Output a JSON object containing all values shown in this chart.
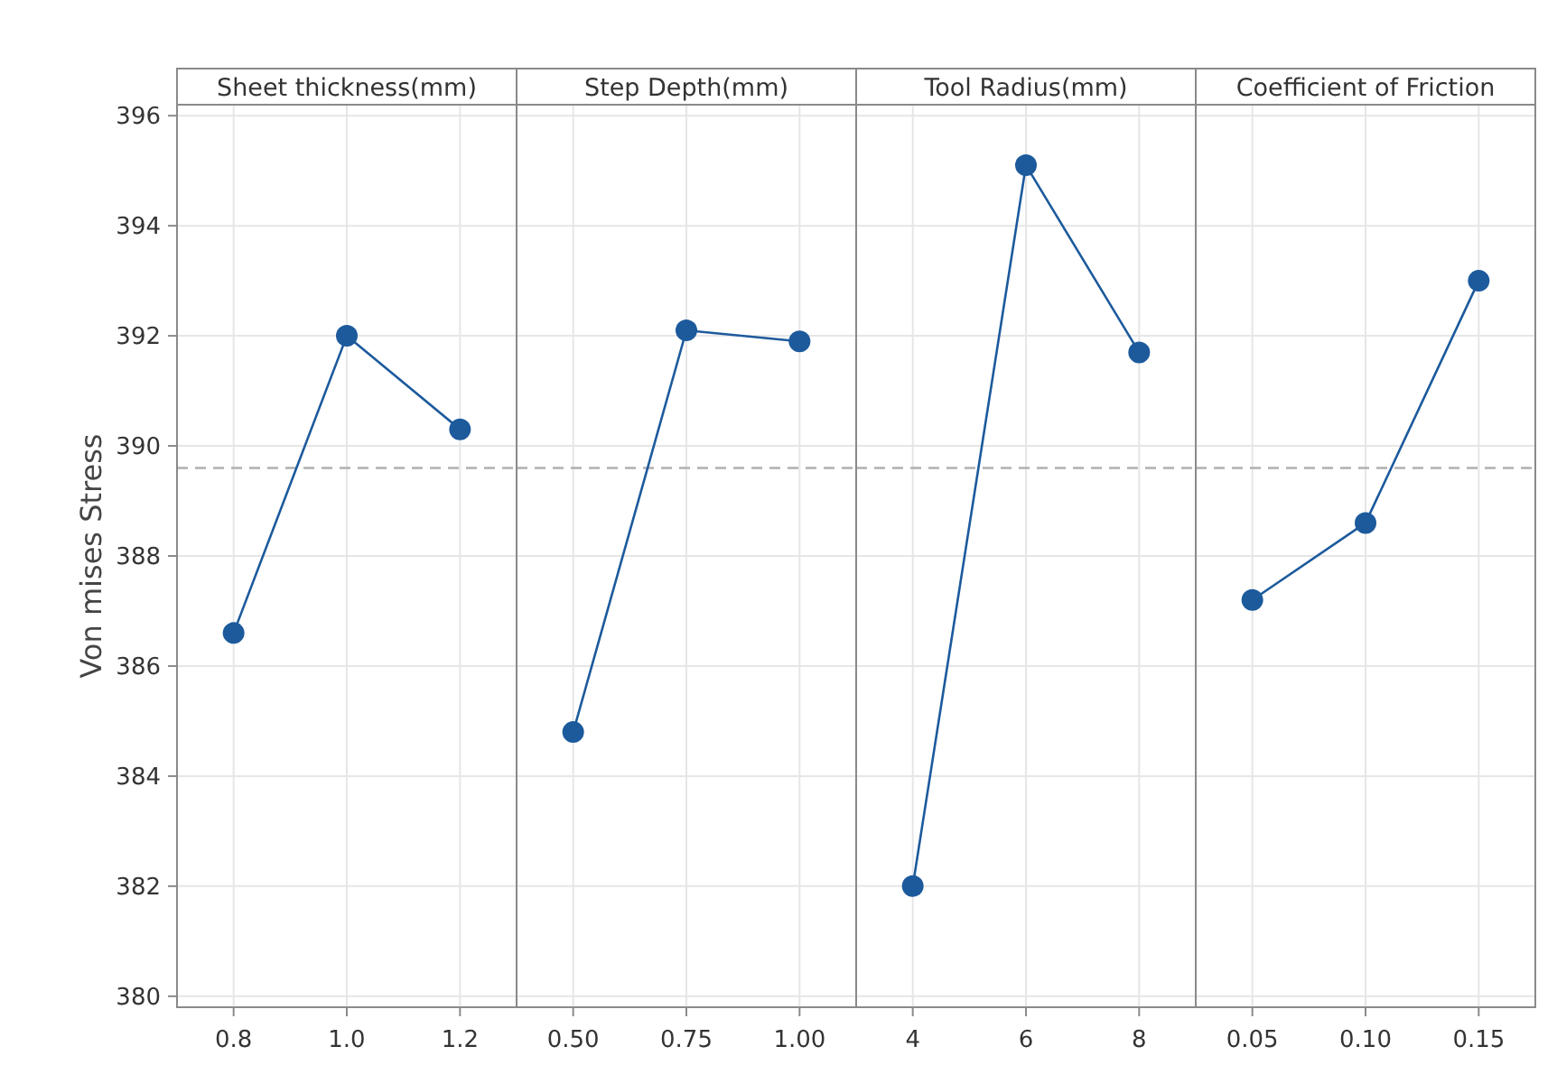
{
  "chart_data": [
    {
      "type": "line",
      "title": "Sheet thickness(mm)",
      "ylabel": "Von mises Stress",
      "categories": [
        "0.8",
        "1.0",
        "1.2"
      ],
      "series": [
        {
          "color": "#1c5a9c",
          "values": [
            386.6,
            392.0,
            390.3
          ]
        }
      ],
      "ylim": [
        379.8,
        396.2
      ],
      "yticks": [
        380,
        382,
        384,
        386,
        388,
        390,
        392,
        394,
        396
      ],
      "grid": true,
      "marker": "circle",
      "ref_lines": [
        {
          "axis": "y",
          "value": 389.6,
          "color": "#b0b0b0",
          "line_style": "dashed"
        }
      ]
    },
    {
      "type": "line",
      "title": "Step Depth(mm)",
      "categories": [
        "0.50",
        "0.75",
        "1.00"
      ],
      "series": [
        {
          "color": "#1c5a9c",
          "values": [
            384.8,
            392.1,
            391.9
          ]
        }
      ],
      "ylim": [
        379.8,
        396.2
      ],
      "yticks": [
        380,
        382,
        384,
        386,
        388,
        390,
        392,
        394,
        396
      ],
      "tick_labels": "x",
      "grid": true,
      "marker": "circle",
      "ref_lines": [
        {
          "axis": "y",
          "value": 389.6,
          "color": "#b0b0b0",
          "line_style": "dashed"
        }
      ]
    },
    {
      "type": "line",
      "title": "Tool Radius(mm)",
      "categories": [
        "4",
        "6",
        "8"
      ],
      "series": [
        {
          "color": "#1c5a9c",
          "values": [
            382.0,
            395.1,
            391.7
          ]
        }
      ],
      "ylim": [
        379.8,
        396.2
      ],
      "yticks": [
        380,
        382,
        384,
        386,
        388,
        390,
        392,
        394,
        396
      ],
      "tick_labels": "x",
      "grid": true,
      "marker": "circle",
      "ref_lines": [
        {
          "axis": "y",
          "value": 389.6,
          "color": "#b0b0b0",
          "line_style": "dashed"
        }
      ]
    },
    {
      "type": "line",
      "title": "Coefficient of Friction",
      "categories": [
        "0.05",
        "0.10",
        "0.15"
      ],
      "series": [
        {
          "color": "#1c5a9c",
          "values": [
            387.2,
            388.6,
            393.0
          ]
        }
      ],
      "ylim": [
        379.8,
        396.2
      ],
      "yticks": [
        380,
        382,
        384,
        386,
        388,
        390,
        392,
        394,
        396
      ],
      "tick_labels": "x",
      "grid": true,
      "marker": "circle",
      "ref_lines": [
        {
          "axis": "y",
          "value": 389.6,
          "color": "#b0b0b0",
          "line_style": "dashed"
        }
      ]
    }
  ]
}
